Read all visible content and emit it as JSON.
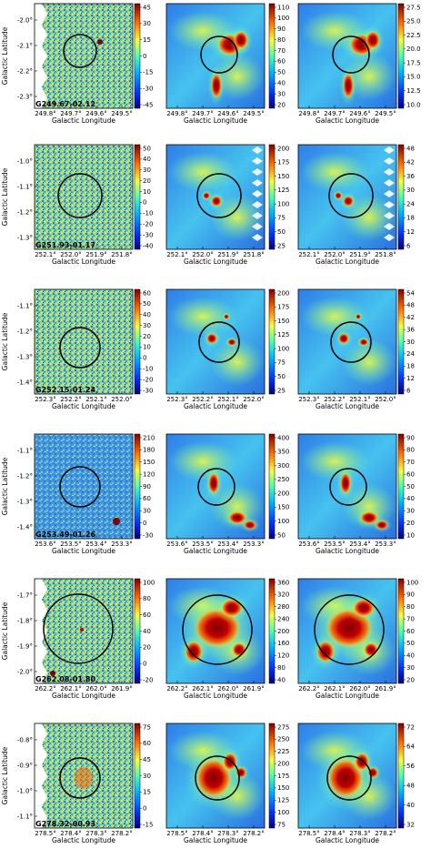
{
  "figure": {
    "columns": 3,
    "xlabel": "Galactic Longitude",
    "ylabel": "Galactic Latitude",
    "colors": {
      "low": "#1a2fa8",
      "mid": "#3fb6e0",
      "high": "#f0e24a",
      "peak": "#8b0000",
      "circle": "#000000"
    }
  },
  "rows": [
    {
      "source": "G249.67-02.12",
      "lat_ticks": [
        "-2.0°",
        "-2.1°",
        "-2.2°",
        "-2.3°"
      ],
      "lon_ticks": [
        "249.8°",
        "249.7°",
        "249.6°",
        "249.5°"
      ],
      "colorbars": [
        [
          "45",
          "30",
          "15",
          "0",
          "-15",
          "-30",
          "-45"
        ],
        [
          "110",
          "100",
          "90",
          "80",
          "70",
          "60",
          "50",
          "40",
          "30",
          "20"
        ],
        [
          "27.5",
          "25.0",
          "22.5",
          "20.0",
          "17.5",
          "15.0",
          "12.5",
          "10.0"
        ]
      ]
    },
    {
      "source": "G251.93-01.17",
      "lat_ticks": [
        "-1.0°",
        "-1.1°",
        "-1.2°",
        "-1.3°"
      ],
      "lon_ticks": [
        "252.1°",
        "252.0°",
        "251.9°",
        "251.8°"
      ],
      "colorbars": [
        [
          "50",
          "40",
          "30",
          "20",
          "10",
          "0",
          "-10",
          "-20",
          "-30",
          "-40"
        ],
        [
          "200",
          "175",
          "150",
          "125",
          "100",
          "75",
          "50",
          "25"
        ],
        [
          "48",
          "42",
          "36",
          "30",
          "24",
          "18",
          "12",
          "6"
        ]
      ]
    },
    {
      "source": "G252.15-01.24",
      "lat_ticks": [
        "-1.1°",
        "-1.2°",
        "-1.3°",
        "-1.4°"
      ],
      "lon_ticks": [
        "252.3°",
        "252.2°",
        "252.1°",
        "252.0°"
      ],
      "colorbars": [
        [
          "60",
          "50",
          "40",
          "30",
          "20",
          "10",
          "0",
          "-10",
          "-20",
          "-30"
        ],
        [
          "200",
          "175",
          "150",
          "125",
          "100",
          "75",
          "50",
          "25"
        ],
        [
          "54",
          "48",
          "42",
          "36",
          "30",
          "24",
          "18",
          "12",
          "6"
        ]
      ]
    },
    {
      "source": "G253.49-01.26",
      "lat_ticks": [
        "-1.1°",
        "-1.2°",
        "-1.3°",
        "-1.4°"
      ],
      "lon_ticks": [
        "253.6°",
        "253.5°",
        "253.4°",
        "253.3°"
      ],
      "colorbars": [
        [
          "210",
          "180",
          "150",
          "120",
          "90",
          "60",
          "30",
          "0",
          "-30"
        ],
        [
          "400",
          "350",
          "300",
          "250",
          "200",
          "150",
          "100",
          "50"
        ],
        [
          "90",
          "80",
          "70",
          "60",
          "50",
          "40",
          "30",
          "20",
          "10"
        ]
      ]
    },
    {
      "source": "G262.08-01.80",
      "lat_ticks": [
        "-1.7°",
        "-1.8°",
        "-1.9°",
        "-2.0°"
      ],
      "lon_ticks": [
        "262.2°",
        "262.1°",
        "262.0°",
        "261.9°"
      ],
      "colorbars": [
        [
          "100",
          "80",
          "60",
          "40",
          "20",
          "0",
          "-20"
        ],
        [
          "360",
          "320",
          "280",
          "240",
          "200",
          "160",
          "120",
          "80",
          "40"
        ],
        [
          "100",
          "90",
          "80",
          "70",
          "60",
          "50",
          "40",
          "30",
          "20"
        ]
      ]
    },
    {
      "source": "G278.32-00.93",
      "lat_ticks": [
        "-0.8°",
        "-0.9°",
        "-1.0°",
        "-1.1°"
      ],
      "lon_ticks": [
        "278.5°",
        "278.4°",
        "278.3°",
        "278.2°"
      ],
      "colorbars": [
        [
          "75",
          "60",
          "45",
          "30",
          "15",
          "0",
          "-15"
        ],
        [
          "275",
          "250",
          "225",
          "200",
          "175",
          "150",
          "125",
          "100",
          "75"
        ],
        [
          "72",
          "64",
          "56",
          "48",
          "40",
          "32"
        ]
      ]
    }
  ]
}
